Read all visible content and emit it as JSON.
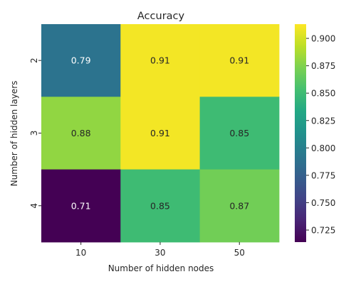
{
  "chart_data": {
    "type": "heatmap",
    "title": "Accuracy",
    "xlabel": "Number of hidden nodes",
    "ylabel": "Number of hidden layers",
    "x_categories": [
      "10",
      "30",
      "50"
    ],
    "y_categories": [
      "2",
      "3",
      "4"
    ],
    "values": [
      [
        0.79,
        0.91,
        0.91
      ],
      [
        0.88,
        0.91,
        0.85
      ],
      [
        0.71,
        0.85,
        0.87
      ]
    ],
    "colormap": "viridis",
    "colorbar": {
      "range": [
        0.714,
        0.913
      ],
      "ticks": [
        "0.725",
        "0.750",
        "0.775",
        "0.800",
        "0.825",
        "0.850",
        "0.875",
        "0.900"
      ]
    },
    "light_text_color": "#ffffff",
    "dark_text_color": "#262626"
  }
}
